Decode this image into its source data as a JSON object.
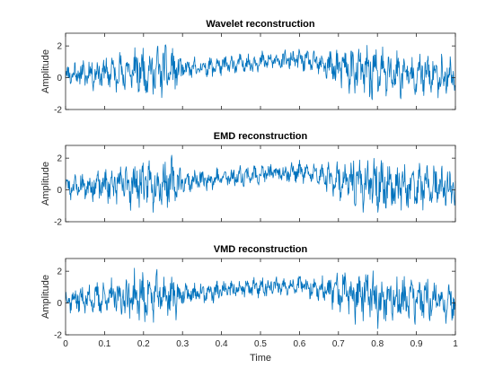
{
  "chart_data": [
    {
      "type": "line",
      "title": "Wavelet reconstruction",
      "xlabel": "",
      "ylabel": "Amplitude",
      "xlim": [
        0,
        1
      ],
      "ylim": [
        -2,
        2.8
      ],
      "yticks": [
        "2",
        "0",
        "-2"
      ],
      "xticks": [],
      "color": "#0072BD",
      "seed": 11,
      "envelope": [
        [
          0,
          0.55
        ],
        [
          0.08,
          0.75
        ],
        [
          0.2,
          1.25
        ],
        [
          0.28,
          1.15
        ],
        [
          0.3,
          0.55
        ],
        [
          0.55,
          0.45
        ],
        [
          0.65,
          0.55
        ],
        [
          0.7,
          1.0
        ],
        [
          0.78,
          1.35
        ],
        [
          0.88,
          1.1
        ],
        [
          1.0,
          0.95
        ]
      ],
      "trend": [
        [
          0,
          0.2
        ],
        [
          0.1,
          0.3
        ],
        [
          0.3,
          0.5
        ],
        [
          0.5,
          1.0
        ],
        [
          0.6,
          1.15
        ],
        [
          0.7,
          0.6
        ],
        [
          0.8,
          0.3
        ],
        [
          1.0,
          0.1
        ]
      ]
    },
    {
      "type": "line",
      "title": "EMD reconstruction",
      "xlabel": "",
      "ylabel": "Amplitude",
      "xlim": [
        0,
        1
      ],
      "ylim": [
        -2,
        2.8
      ],
      "yticks": [
        "2",
        "0",
        "-2"
      ],
      "xticks": [],
      "color": "#0072BD",
      "seed": 23,
      "envelope": [
        [
          0,
          0.55
        ],
        [
          0.08,
          0.75
        ],
        [
          0.2,
          1.25
        ],
        [
          0.28,
          1.15
        ],
        [
          0.3,
          0.55
        ],
        [
          0.55,
          0.45
        ],
        [
          0.65,
          0.55
        ],
        [
          0.7,
          1.0
        ],
        [
          0.78,
          1.35
        ],
        [
          0.88,
          1.1
        ],
        [
          1.0,
          0.95
        ]
      ],
      "trend": [
        [
          0,
          0.2
        ],
        [
          0.1,
          0.3
        ],
        [
          0.3,
          0.5
        ],
        [
          0.5,
          1.0
        ],
        [
          0.6,
          1.15
        ],
        [
          0.7,
          0.6
        ],
        [
          0.8,
          0.3
        ],
        [
          1.0,
          0.1
        ]
      ]
    },
    {
      "type": "line",
      "title": "VMD reconstruction",
      "xlabel": "Time",
      "ylabel": "Amplitude",
      "xlim": [
        0,
        1
      ],
      "ylim": [
        -2,
        2.8
      ],
      "yticks": [
        "2",
        "0",
        "-2"
      ],
      "xticks": [
        "0",
        "0.1",
        "0.2",
        "0.3",
        "0.4",
        "0.5",
        "0.6",
        "0.7",
        "0.8",
        "0.9",
        "1"
      ],
      "color": "#0072BD",
      "seed": 37,
      "envelope": [
        [
          0,
          0.55
        ],
        [
          0.08,
          0.75
        ],
        [
          0.2,
          1.25
        ],
        [
          0.28,
          1.15
        ],
        [
          0.3,
          0.55
        ],
        [
          0.55,
          0.45
        ],
        [
          0.65,
          0.55
        ],
        [
          0.7,
          1.0
        ],
        [
          0.78,
          1.35
        ],
        [
          0.88,
          1.1
        ],
        [
          1.0,
          0.95
        ]
      ],
      "trend": [
        [
          0,
          0.2
        ],
        [
          0.1,
          0.3
        ],
        [
          0.3,
          0.5
        ],
        [
          0.5,
          1.0
        ],
        [
          0.6,
          1.15
        ],
        [
          0.7,
          0.6
        ],
        [
          0.8,
          0.3
        ],
        [
          1.0,
          0.1
        ]
      ]
    }
  ]
}
